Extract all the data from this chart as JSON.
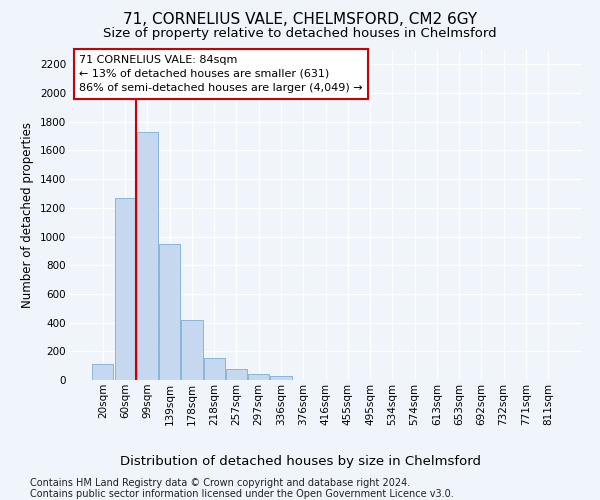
{
  "title1": "71, CORNELIUS VALE, CHELMSFORD, CM2 6GY",
  "title2": "Size of property relative to detached houses in Chelmsford",
  "xlabel": "Distribution of detached houses by size in Chelmsford",
  "ylabel": "Number of detached properties",
  "bar_labels": [
    "20sqm",
    "60sqm",
    "99sqm",
    "139sqm",
    "178sqm",
    "218sqm",
    "257sqm",
    "297sqm",
    "336sqm",
    "376sqm",
    "416sqm",
    "455sqm",
    "495sqm",
    "534sqm",
    "574sqm",
    "613sqm",
    "653sqm",
    "692sqm",
    "732sqm",
    "771sqm",
    "811sqm"
  ],
  "bar_values": [
    110,
    1270,
    1730,
    950,
    415,
    155,
    75,
    45,
    25,
    0,
    0,
    0,
    0,
    0,
    0,
    0,
    0,
    0,
    0,
    0,
    0
  ],
  "bar_color": "#c5d8f0",
  "bar_edge_color": "#7aafd4",
  "vline_color": "#cc0000",
  "annotation_text": "71 CORNELIUS VALE: 84sqm\n← 13% of detached houses are smaller (631)\n86% of semi-detached houses are larger (4,049) →",
  "annotation_box_color": "#ffffff",
  "annotation_box_edge": "#cc0000",
  "ylim": [
    0,
    2300
  ],
  "yticks": [
    0,
    200,
    400,
    600,
    800,
    1000,
    1200,
    1400,
    1600,
    1800,
    2000,
    2200
  ],
  "footer_line1": "Contains HM Land Registry data © Crown copyright and database right 2024.",
  "footer_line2": "Contains public sector information licensed under the Open Government Licence v3.0.",
  "bg_color": "#f0f4fb",
  "plot_bg_color": "#f0f4fb",
  "grid_color": "#ffffff",
  "title1_fontsize": 11,
  "title2_fontsize": 9.5,
  "xlabel_fontsize": 9.5,
  "ylabel_fontsize": 8.5,
  "tick_fontsize": 7.5,
  "footer_fontsize": 7,
  "annot_fontsize": 8
}
